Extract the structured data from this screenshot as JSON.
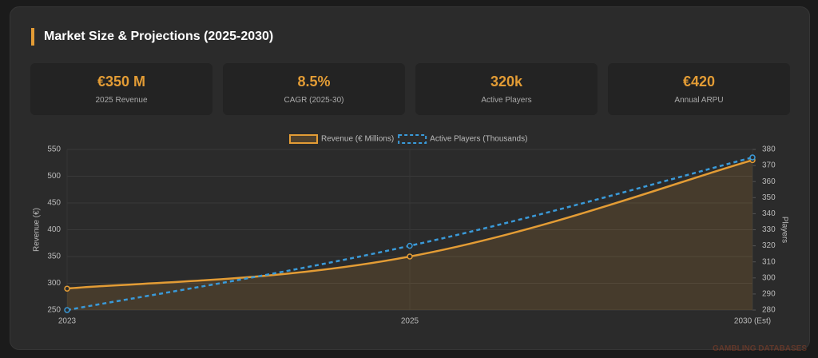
{
  "header": {
    "title": "Market Size & Projections (2025-2030)"
  },
  "kpis": [
    {
      "value": "€350 M",
      "label": "2025 Revenue"
    },
    {
      "value": "8.5%",
      "label": "CAGR (2025-30)"
    },
    {
      "value": "320k",
      "label": "Active Players"
    },
    {
      "value": "€420",
      "label": "Annual ARPU"
    }
  ],
  "watermark": "GAMBLING DATABASES",
  "chart_data": {
    "type": "line",
    "categories": [
      "2023",
      "2025",
      "2030 (Est)"
    ],
    "series": [
      {
        "name": "Revenue (€ Millions)",
        "color": "#e39c35",
        "values": [
          290,
          350,
          530
        ],
        "fill": true
      },
      {
        "name": "Active Players (Thousands)",
        "color": "#3a9ad9",
        "values": [
          280,
          320,
          375
        ],
        "axis": "y2",
        "dashed": true
      }
    ],
    "ylabel": "Revenue (€)",
    "y2label": "Players",
    "ylim": [
      250,
      550
    ],
    "yticks": [
      250,
      300,
      350,
      400,
      450,
      500,
      550
    ],
    "y2lim": [
      280,
      380
    ],
    "y2ticks": [
      280,
      290,
      300,
      310,
      320,
      330,
      340,
      350,
      360,
      370,
      380
    ],
    "grid": true,
    "legend": "top"
  }
}
